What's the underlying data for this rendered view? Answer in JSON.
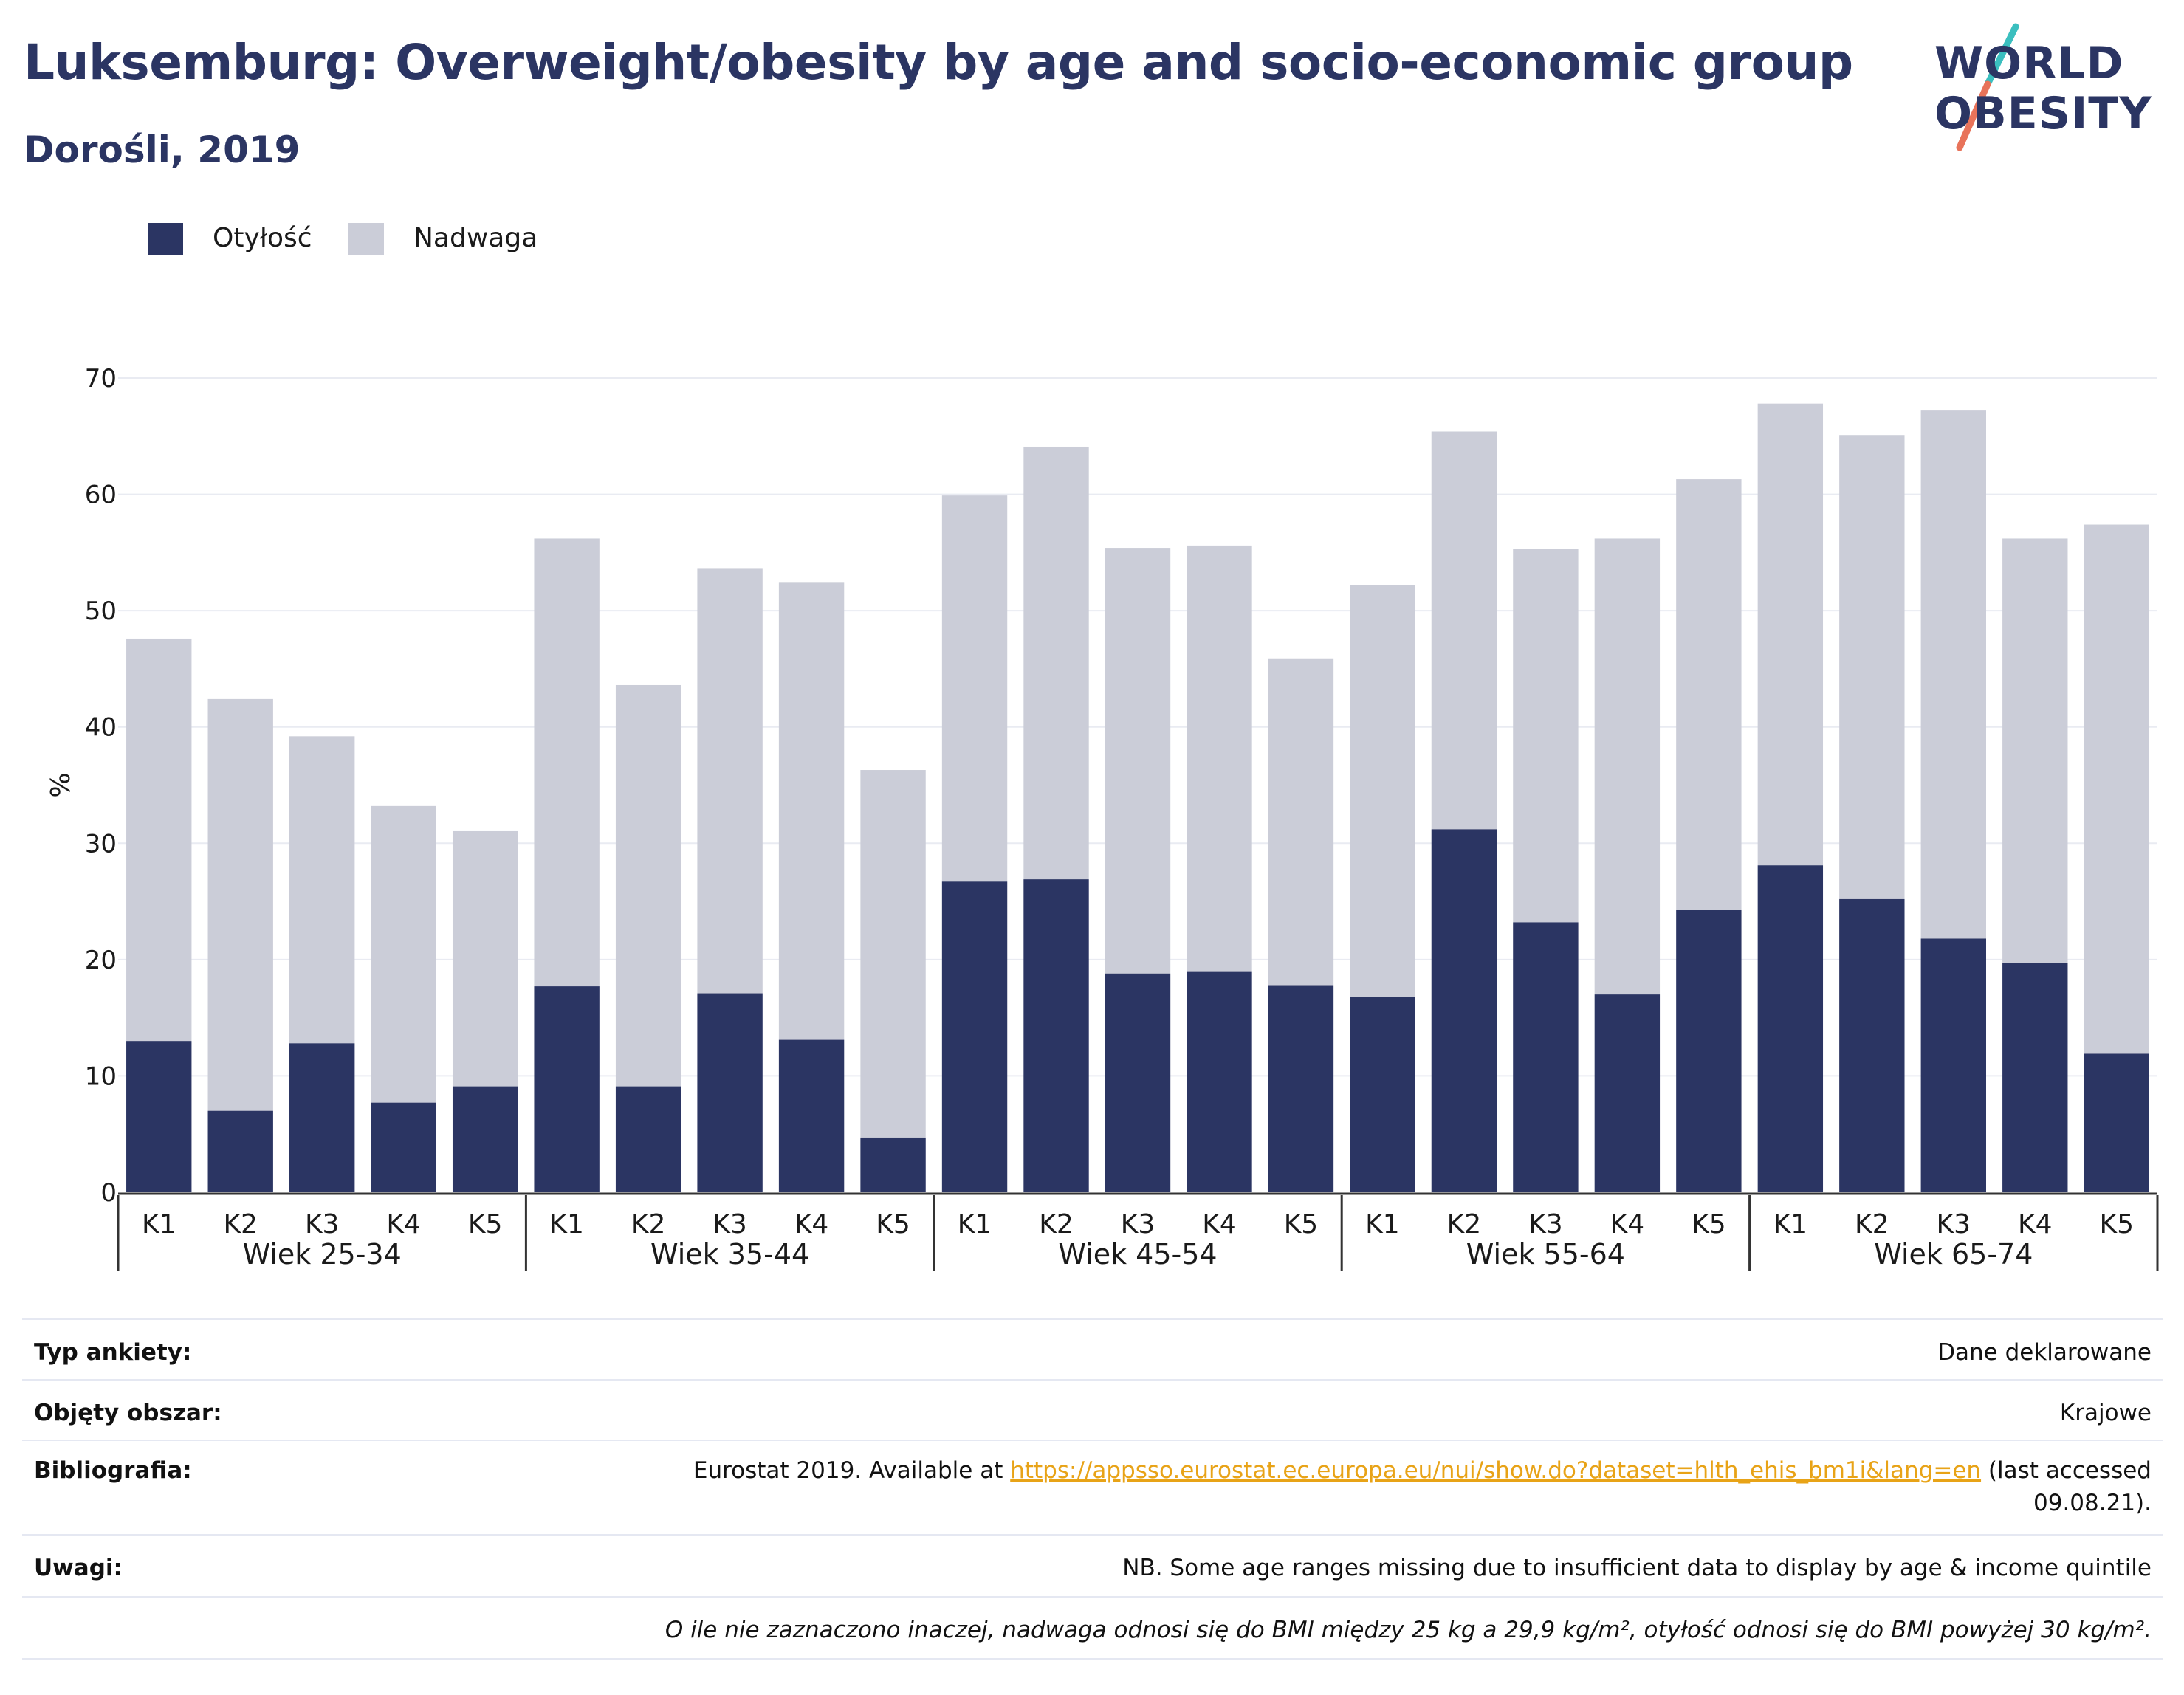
{
  "header": {
    "title": "Luksemburg: Overweight/obesity by age and socio-economic group",
    "subtitle": "Dorośli, 2019",
    "logo_text_1": "WORLD",
    "logo_text_2": "OBESITY"
  },
  "legend": {
    "obesity_label": "Otyłość",
    "overweight_label": "Nadwaga"
  },
  "colors": {
    "obesity": "#2b3563",
    "overweight": "#cbcdd8",
    "text": "#1a1a1a",
    "logo_teal": "#3bbfbf",
    "logo_coral": "#e8735a"
  },
  "chart_data": {
    "type": "bar",
    "stacked": true,
    "ylabel": "%",
    "ylim": [
      0,
      70
    ],
    "yticks": [
      0,
      10,
      20,
      30,
      40,
      50,
      60,
      70
    ],
    "grid": true,
    "legend_position": "top-left",
    "groups": [
      "Wiek 25-34",
      "Wiek 35-44",
      "Wiek 45-54",
      "Wiek 55-64",
      "Wiek 65-74"
    ],
    "categories": [
      "K1",
      "K2",
      "K3",
      "K4",
      "K5"
    ],
    "series": [
      {
        "name": "Otyłość",
        "values": [
          [
            13.0,
            7.0,
            12.8,
            7.7,
            9.1
          ],
          [
            17.7,
            9.1,
            17.1,
            13.1,
            4.7
          ],
          [
            26.7,
            26.9,
            18.8,
            19.0,
            17.8
          ],
          [
            16.8,
            31.2,
            23.2,
            17.0,
            24.3
          ],
          [
            28.1,
            25.2,
            21.8,
            19.7,
            11.9
          ]
        ]
      },
      {
        "name": "Nadwaga",
        "values": [
          [
            34.6,
            35.4,
            26.4,
            25.5,
            22.0
          ],
          [
            38.5,
            34.5,
            36.5,
            39.3,
            31.6
          ],
          [
            33.2,
            37.2,
            36.6,
            36.6,
            28.1
          ],
          [
            35.4,
            34.2,
            32.1,
            39.2,
            37.0
          ],
          [
            39.7,
            39.9,
            45.4,
            36.5,
            45.5
          ]
        ]
      }
    ]
  },
  "info": {
    "survey_label": "Typ ankiety:",
    "survey_value": "Dane deklarowane",
    "area_label": "Objęty obszar:",
    "area_value": "Krajowe",
    "biblio_label": "Bibliografia:",
    "biblio_prefix": "Eurostat 2019. Available at ",
    "biblio_link": "https://appsso.eurostat.ec.europa.eu/nui/show.do?dataset=hlth_ehis_bm1i&lang=en",
    "biblio_suffix_1": " (last accessed",
    "biblio_suffix_2": "09.08.21).",
    "notes_label": "Uwagi:",
    "notes_value": "NB. Some age ranges missing due to insufficient data to display by age & income quintile",
    "footnote": "O ile nie zaznaczono inaczej, nadwaga odnosi się do BMI między 25 kg a 29,9 kg/m², otyłość odnosi się do BMI powyżej 30 kg/m²."
  }
}
